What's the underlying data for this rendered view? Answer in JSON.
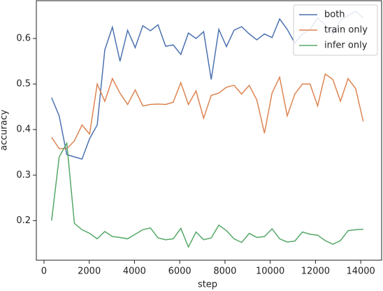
{
  "chart_data": {
    "type": "line",
    "xlabel": "step",
    "ylabel": "accuracy",
    "x": [
      336,
      672,
      1008,
      1344,
      1680,
      2016,
      2352,
      2688,
      3024,
      3360,
      3696,
      4032,
      4368,
      4704,
      5040,
      5376,
      5712,
      6048,
      6384,
      6720,
      7056,
      7392,
      7728,
      8064,
      8400,
      8736,
      9072,
      9408,
      9744,
      10080,
      10416,
      10752,
      11088,
      11424,
      11760,
      12096,
      12432,
      12768,
      13104,
      13440,
      13776,
      14112
    ],
    "series": [
      {
        "name": "both",
        "color": "#4c72b0",
        "values": [
          0.47,
          0.43,
          0.345,
          0.34,
          0.335,
          0.38,
          0.41,
          0.575,
          0.625,
          0.55,
          0.618,
          0.58,
          0.628,
          0.617,
          0.63,
          0.583,
          0.586,
          0.565,
          0.612,
          0.6,
          0.615,
          0.51,
          0.62,
          0.582,
          0.618,
          0.626,
          0.61,
          0.597,
          0.61,
          0.602,
          0.643,
          0.62,
          0.59,
          0.61,
          0.62,
          0.645,
          0.63,
          0.61,
          0.64,
          0.65,
          0.66,
          0.645
        ]
      },
      {
        "name": "train only",
        "color": "#dd8452",
        "values": [
          0.383,
          0.358,
          0.358,
          0.375,
          0.41,
          0.39,
          0.5,
          0.462,
          0.512,
          0.48,
          0.455,
          0.487,
          0.452,
          0.455,
          0.456,
          0.455,
          0.46,
          0.503,
          0.455,
          0.485,
          0.425,
          0.475,
          0.48,
          0.493,
          0.497,
          0.478,
          0.497,
          0.465,
          0.392,
          0.48,
          0.515,
          0.43,
          0.478,
          0.5,
          0.5,
          0.452,
          0.522,
          0.51,
          0.462,
          0.512,
          0.49,
          0.418
        ]
      },
      {
        "name": "infer only",
        "color": "#55a868",
        "values": [
          0.2,
          0.34,
          0.37,
          0.194,
          0.18,
          0.172,
          0.16,
          0.176,
          0.165,
          0.163,
          0.16,
          0.17,
          0.18,
          0.184,
          0.162,
          0.158,
          0.16,
          0.183,
          0.142,
          0.175,
          0.158,
          0.162,
          0.19,
          0.178,
          0.16,
          0.152,
          0.172,
          0.163,
          0.165,
          0.182,
          0.16,
          0.153,
          0.155,
          0.175,
          0.17,
          0.168,
          0.156,
          0.148,
          0.156,
          0.178,
          0.18,
          0.181
        ]
      }
    ],
    "xlim": [
      -338,
      14923
    ],
    "xticks": [
      0,
      2000,
      4000,
      6000,
      8000,
      10000,
      12000,
      14000
    ],
    "ylim": [
      0.113,
      0.683
    ],
    "yticks": [
      0.2,
      0.3,
      0.4,
      0.5,
      0.6
    ],
    "legend": "upper right"
  }
}
